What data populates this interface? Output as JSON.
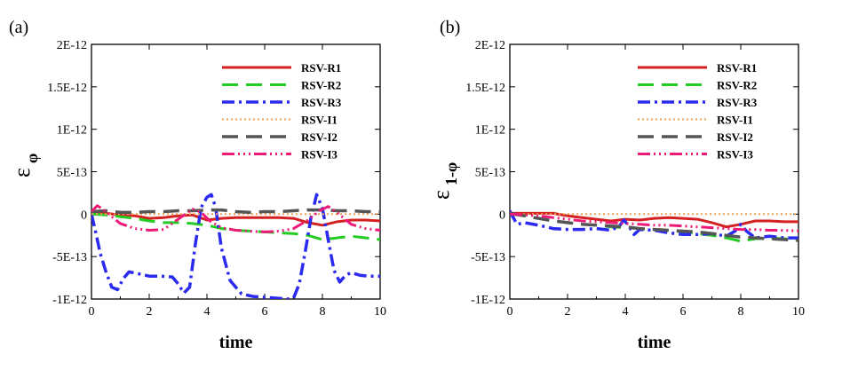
{
  "chart_data": [
    {
      "type": "line",
      "panel_label": "(a)",
      "xlabel": "time",
      "ylabel_symbol": "ε",
      "ylabel_subscript": "φ",
      "xlim": [
        0,
        10
      ],
      "ylim": [
        -1e-12,
        2e-12
      ],
      "x_ticks": [
        "0",
        "2",
        "4",
        "6",
        "8",
        "10"
      ],
      "x_tick_values": [
        0,
        2,
        4,
        6,
        8,
        10
      ],
      "y_ticks": [
        "-1E-12",
        "-5E-13",
        "0",
        "5E-13",
        "1E-12",
        "1.5E-12",
        "2E-12"
      ],
      "y_tick_values": [
        -1e-12,
        -5e-13,
        0,
        5e-13,
        1e-12,
        1.5e-12,
        2e-12
      ],
      "legend_position": "top-right",
      "series": [
        {
          "name": "RSV-R1",
          "color": "#d42020",
          "dash": "",
          "width": 3,
          "x": [
            0,
            0.5,
            1,
            1.5,
            2,
            2.5,
            3,
            3.5,
            4,
            4.5,
            5,
            5.5,
            6,
            6.5,
            7,
            7.5,
            8,
            8.5,
            9,
            9.5,
            10
          ],
          "y": [
            0,
            1e-14,
            -1e-14,
            -2e-14,
            -5e-14,
            -4e-14,
            -2e-14,
            -1e-14,
            -7e-14,
            -5e-14,
            -4e-14,
            -4e-14,
            -4e-14,
            -4e-14,
            -5e-14,
            -1e-13,
            -1.3e-13,
            -9e-14,
            -7e-14,
            -7e-14,
            -8e-14
          ]
        },
        {
          "name": "RSV-R2",
          "color": "#22cc22",
          "dash": "18,9",
          "width": 3,
          "x": [
            0,
            0.5,
            1,
            1.5,
            2,
            2.5,
            3,
            3.5,
            4,
            4.5,
            5,
            5.5,
            6,
            6.5,
            7,
            7.5,
            8,
            8.5,
            9,
            9.5,
            10
          ],
          "y": [
            0,
            -1e-14,
            -3e-14,
            -5e-14,
            -8e-14,
            -1e-13,
            -1e-13,
            -1.1e-13,
            -1.3e-13,
            -1.7e-13,
            -1.9e-13,
            -2e-13,
            -2.1e-13,
            -2.2e-13,
            -2.3e-13,
            -2.5e-13,
            -3e-13,
            -2.8e-13,
            -2.6e-13,
            -2.8e-13,
            -3e-13
          ]
        },
        {
          "name": "RSV-R3",
          "color": "#2a2af0",
          "dash": "14,5,3,5",
          "width": 3.5,
          "x": [
            0,
            0.15,
            0.3,
            0.5,
            0.7,
            0.9,
            1.1,
            1.3,
            1.6,
            2.0,
            2.4,
            2.8,
            3.0,
            3.2,
            3.4,
            3.6,
            3.8,
            4.0,
            4.15,
            4.3,
            4.5,
            4.8,
            5.2,
            5.6,
            6.0,
            6.4,
            6.8,
            7.0,
            7.2,
            7.4,
            7.6,
            7.8,
            8.0,
            8.2,
            8.4,
            8.6,
            8.8,
            9.0,
            9.3,
            9.6,
            10
          ],
          "y": [
            0,
            -2.2e-13,
            -4.6e-13,
            -6.8e-13,
            -8.6e-13,
            -8.9e-13,
            -7.6e-13,
            -6.8e-13,
            -7e-13,
            -7.3e-13,
            -7.3e-13,
            -7.4e-13,
            -8.2e-13,
            -9.3e-13,
            -8.6e-13,
            -3.5e-13,
            8e-14,
            2e-13,
            2.3e-13,
            8e-14,
            -4e-13,
            -7.8e-13,
            -9.4e-13,
            -9.7e-13,
            -9.8e-13,
            -9.9e-13,
            -1e-12,
            -9.9e-13,
            -8.2e-13,
            -4.5e-13,
            -5e-14,
            2.3e-13,
            7e-14,
            -3e-13,
            -6.6e-13,
            -8e-13,
            -7.2e-13,
            -6.9e-13,
            -7.2e-13,
            -7.3e-13,
            -7.3e-13
          ]
        },
        {
          "name": "RSV-I1",
          "color": "#f0a050",
          "dash": "2,3",
          "width": 2,
          "x": [
            0,
            1,
            2,
            3,
            4,
            5,
            6,
            7,
            8,
            9,
            10
          ],
          "y": [
            0,
            0,
            0,
            0,
            0,
            0,
            0,
            0,
            0,
            0,
            0
          ]
        },
        {
          "name": "RSV-I2",
          "color": "#555555",
          "dash": "18,9",
          "width": 3.5,
          "x": [
            0,
            0.5,
            1,
            1.5,
            2,
            2.5,
            3,
            3.5,
            4,
            4.5,
            5,
            5.5,
            6,
            6.5,
            7,
            7.5,
            8,
            8.5,
            9,
            9.5,
            10
          ],
          "y": [
            3e-14,
            4e-14,
            2e-14,
            2e-14,
            3e-14,
            3e-14,
            4e-14,
            4e-14,
            5e-14,
            5e-14,
            3e-14,
            2e-14,
            3e-14,
            3e-14,
            4e-14,
            5e-14,
            5e-14,
            4e-14,
            4e-14,
            3e-14,
            3e-14
          ]
        },
        {
          "name": "RSV-I3",
          "color": "#ee1a77",
          "dash": "14,4,2,4,2,4,2,4",
          "width": 3,
          "x": [
            0,
            0.2,
            0.4,
            0.7,
            1.0,
            1.5,
            2.0,
            2.5,
            3.0,
            3.5,
            3.8,
            4.1,
            4.5,
            5.0,
            5.5,
            6.0,
            6.5,
            7.0,
            7.5,
            7.9,
            8.2,
            8.5,
            9.0,
            9.5,
            10
          ],
          "y": [
            3e-14,
            1e-13,
            6e-14,
            -3e-14,
            -1.1e-13,
            -1.7e-13,
            -1.9e-13,
            -1.8e-13,
            -6e-14,
            6e-14,
            2e-14,
            -8e-14,
            -1.6e-13,
            -1.9e-13,
            -2e-13,
            -2.1e-13,
            -2e-13,
            -1.7e-13,
            -7e-14,
            4e-14,
            9e-14,
            2e-14,
            -1.2e-13,
            -1.7e-13,
            -1.9e-13
          ]
        }
      ]
    },
    {
      "type": "line",
      "panel_label": "(b)",
      "xlabel": "time",
      "ylabel_symbol": "ε",
      "ylabel_subscript": "1-φ",
      "xlim": [
        0,
        10
      ],
      "ylim": [
        -1e-12,
        2e-12
      ],
      "x_ticks": [
        "0",
        "2",
        "4",
        "6",
        "8",
        "10"
      ],
      "x_tick_values": [
        0,
        2,
        4,
        6,
        8,
        10
      ],
      "y_ticks": [
        "-1E-12",
        "-5E-13",
        "0",
        "5E-13",
        "1E-12",
        "1.5E-12",
        "2E-12"
      ],
      "y_tick_values": [
        -1e-12,
        -5e-13,
        0,
        5e-13,
        1e-12,
        1.5e-12,
        2e-12
      ],
      "legend_position": "top-right",
      "series": [
        {
          "name": "RSV-R1",
          "color": "#d42020",
          "dash": "",
          "width": 3,
          "x": [
            0,
            0.5,
            1,
            1.5,
            2,
            2.5,
            3,
            3.5,
            4,
            4.5,
            5,
            5.5,
            6,
            6.5,
            7,
            7.5,
            8,
            8.5,
            9,
            9.5,
            10
          ],
          "y": [
            1e-14,
            1e-14,
            1e-14,
            1e-14,
            -2e-14,
            -4e-14,
            -6e-14,
            -8e-14,
            -6e-14,
            -7e-14,
            -5e-14,
            -4e-14,
            -5e-14,
            -6e-14,
            -1e-13,
            -1.5e-13,
            -1.2e-13,
            -8e-14,
            -8e-14,
            -9e-14,
            -9e-14
          ]
        },
        {
          "name": "RSV-R2",
          "color": "#22cc22",
          "dash": "18,9",
          "width": 3,
          "x": [
            0,
            0.5,
            1,
            1.5,
            2,
            2.5,
            3,
            3.5,
            4,
            4.5,
            5,
            5.5,
            6,
            6.5,
            7,
            7.5,
            8,
            8.5,
            9,
            9.5,
            10
          ],
          "y": [
            0,
            -2e-14,
            -5e-14,
            -8e-14,
            -1e-13,
            -1.2e-13,
            -1.3e-13,
            -1.5e-13,
            -1.6e-13,
            -1.7e-13,
            -1.8e-13,
            -1.9e-13,
            -2.1e-13,
            -2.3e-13,
            -2.5e-13,
            -2.8e-13,
            -3.2e-13,
            -2.9e-13,
            -2.8e-13,
            -2.9e-13,
            -3e-13
          ]
        },
        {
          "name": "RSV-R3",
          "color": "#2a2af0",
          "dash": "14,5,3,5",
          "width": 3.5,
          "x": [
            0,
            0.1,
            0.25,
            0.5,
            1.0,
            1.5,
            2.0,
            2.5,
            3.0,
            3.5,
            3.8,
            3.95,
            4.1,
            4.3,
            4.5,
            5.0,
            5.5,
            6.0,
            6.5,
            7.0,
            7.5,
            7.8,
            8.0,
            8.2,
            8.5,
            9.0,
            9.5,
            10
          ],
          "y": [
            4e-14,
            -3e-14,
            -1.2e-13,
            -1e-13,
            -1.3e-13,
            -1.7e-13,
            -1.8e-13,
            -1.8e-13,
            -1.7e-13,
            -1.9e-13,
            -1.4e-13,
            -7e-14,
            -1.3e-13,
            -2.4e-13,
            -1.8e-13,
            -1.9e-13,
            -2.2e-13,
            -2.4e-13,
            -2.4e-13,
            -2.3e-13,
            -2.6e-13,
            -2e-13,
            -1.2e-13,
            -2e-13,
            -2.8e-13,
            -2.6e-13,
            -2.8e-13,
            -2.8e-13
          ]
        },
        {
          "name": "RSV-I1",
          "color": "#f0a050",
          "dash": "2,3",
          "width": 2,
          "x": [
            0,
            1,
            2,
            3,
            4,
            5,
            6,
            7,
            8,
            9,
            10
          ],
          "y": [
            0,
            0,
            0,
            0,
            0,
            0,
            0,
            0,
            0,
            0,
            0
          ]
        },
        {
          "name": "RSV-I2",
          "color": "#555555",
          "dash": "18,9",
          "width": 3.5,
          "x": [
            0,
            0.5,
            1,
            1.5,
            2,
            2.5,
            3,
            3.5,
            4,
            4.5,
            5,
            5.5,
            6,
            6.5,
            7,
            7.5,
            8,
            8.5,
            9,
            9.5,
            10
          ],
          "y": [
            1e-14,
            -2e-14,
            -5e-14,
            -8e-14,
            -1e-13,
            -1.2e-13,
            -1.3e-13,
            -1.4e-13,
            -1.5e-13,
            -1.7e-13,
            -1.8e-13,
            -1.9e-13,
            -2e-13,
            -2.1e-13,
            -2.3e-13,
            -2.5e-13,
            -2.7e-13,
            -2.8e-13,
            -2.9e-13,
            -3e-13,
            -3.1e-13
          ]
        },
        {
          "name": "RSV-I3",
          "color": "#ee1a77",
          "dash": "14,4,2,4,2,4,2,4",
          "width": 3,
          "x": [
            0,
            0.5,
            1,
            1.5,
            2,
            2.5,
            3,
            3.5,
            4,
            4.5,
            5,
            5.5,
            6,
            6.5,
            7,
            7.5,
            8,
            8.5,
            9,
            9.5,
            10
          ],
          "y": [
            0,
            -1e-14,
            -2e-14,
            -4e-14,
            -6e-14,
            -8e-14,
            -9e-14,
            -1e-13,
            -1.1e-13,
            -1.2e-13,
            -1.3e-13,
            -1.3e-13,
            -1.4e-13,
            -1.5e-13,
            -1.6e-13,
            -1.7e-13,
            -1.8e-13,
            -1.8e-13,
            -1.9e-13,
            -1.9e-13,
            -2e-13
          ]
        }
      ]
    }
  ]
}
